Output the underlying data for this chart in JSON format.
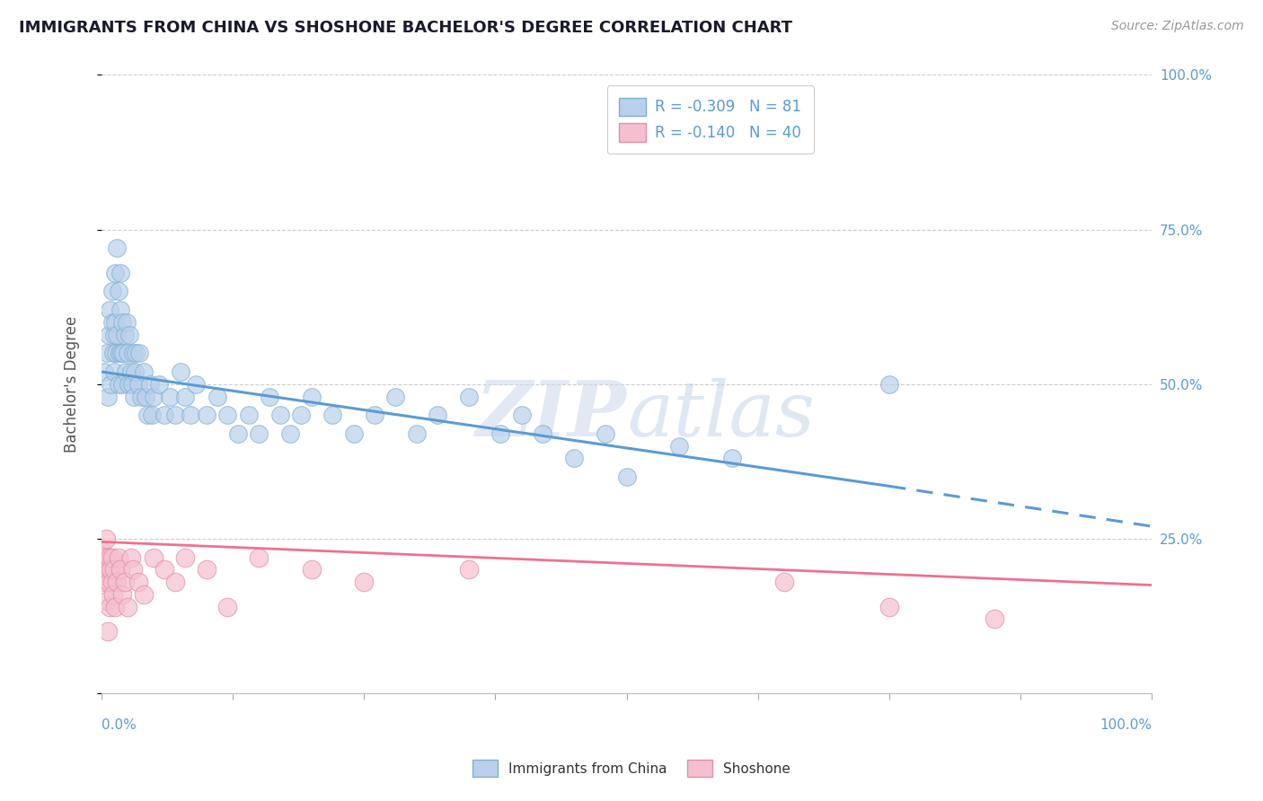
{
  "title": "IMMIGRANTS FROM CHINA VS SHOSHONE BACHELOR'S DEGREE CORRELATION CHART",
  "source": "Source: ZipAtlas.com",
  "watermark": "ZIPatlas",
  "ylabel": "Bachelor's Degree",
  "legend_bottom_labels": [
    "Immigrants from China",
    "Shoshone"
  ],
  "r_china": -0.309,
  "n_china": 81,
  "r_shoshone": -0.14,
  "n_shoshone": 40,
  "china_color": "#b8d0eb",
  "shoshone_color": "#f5bfcf",
  "china_line_color": "#5b9bd5",
  "shoshone_line_color": "#f07090",
  "china_edge_color": "#80afd0",
  "shoshone_edge_color": "#e090a8",
  "background_color": "#ffffff",
  "xlim": [
    0.0,
    1.0
  ],
  "ylim": [
    0.0,
    1.0
  ],
  "yticks": [
    0.0,
    0.25,
    0.5,
    0.75,
    1.0
  ],
  "ytick_labels": [
    "",
    "25.0%",
    "50.0%",
    "75.0%",
    "100.0%"
  ],
  "china_x": [
    0.003,
    0.005,
    0.006,
    0.007,
    0.008,
    0.009,
    0.01,
    0.01,
    0.011,
    0.012,
    0.012,
    0.013,
    0.013,
    0.014,
    0.015,
    0.015,
    0.016,
    0.016,
    0.017,
    0.018,
    0.018,
    0.019,
    0.02,
    0.02,
    0.021,
    0.022,
    0.023,
    0.024,
    0.025,
    0.026,
    0.027,
    0.028,
    0.029,
    0.03,
    0.031,
    0.032,
    0.033,
    0.035,
    0.036,
    0.038,
    0.04,
    0.042,
    0.044,
    0.046,
    0.048,
    0.05,
    0.055,
    0.06,
    0.065,
    0.07,
    0.075,
    0.08,
    0.085,
    0.09,
    0.1,
    0.11,
    0.12,
    0.13,
    0.14,
    0.15,
    0.16,
    0.17,
    0.18,
    0.19,
    0.2,
    0.22,
    0.24,
    0.26,
    0.28,
    0.3,
    0.32,
    0.35,
    0.38,
    0.4,
    0.42,
    0.45,
    0.48,
    0.5,
    0.55,
    0.6,
    0.75
  ],
  "china_y": [
    0.52,
    0.55,
    0.48,
    0.58,
    0.62,
    0.5,
    0.6,
    0.65,
    0.55,
    0.58,
    0.52,
    0.6,
    0.68,
    0.55,
    0.72,
    0.58,
    0.65,
    0.5,
    0.55,
    0.62,
    0.68,
    0.55,
    0.5,
    0.6,
    0.55,
    0.58,
    0.52,
    0.6,
    0.55,
    0.5,
    0.58,
    0.52,
    0.5,
    0.55,
    0.48,
    0.52,
    0.55,
    0.5,
    0.55,
    0.48,
    0.52,
    0.48,
    0.45,
    0.5,
    0.45,
    0.48,
    0.5,
    0.45,
    0.48,
    0.45,
    0.52,
    0.48,
    0.45,
    0.5,
    0.45,
    0.48,
    0.45,
    0.42,
    0.45,
    0.42,
    0.48,
    0.45,
    0.42,
    0.45,
    0.48,
    0.45,
    0.42,
    0.45,
    0.48,
    0.42,
    0.45,
    0.48,
    0.42,
    0.45,
    0.42,
    0.38,
    0.42,
    0.35,
    0.4,
    0.38,
    0.5
  ],
  "shoshone_x": [
    0.001,
    0.002,
    0.003,
    0.004,
    0.004,
    0.005,
    0.006,
    0.006,
    0.007,
    0.008,
    0.008,
    0.009,
    0.01,
    0.01,
    0.011,
    0.012,
    0.013,
    0.015,
    0.016,
    0.018,
    0.02,
    0.022,
    0.025,
    0.028,
    0.03,
    0.035,
    0.04,
    0.05,
    0.06,
    0.07,
    0.08,
    0.1,
    0.12,
    0.15,
    0.2,
    0.25,
    0.35,
    0.65,
    0.75,
    0.85
  ],
  "shoshone_y": [
    0.23,
    0.2,
    0.18,
    0.25,
    0.22,
    0.15,
    0.2,
    0.1,
    0.18,
    0.22,
    0.14,
    0.2,
    0.18,
    0.22,
    0.16,
    0.2,
    0.14,
    0.18,
    0.22,
    0.2,
    0.16,
    0.18,
    0.14,
    0.22,
    0.2,
    0.18,
    0.16,
    0.22,
    0.2,
    0.18,
    0.22,
    0.2,
    0.14,
    0.22,
    0.2,
    0.18,
    0.2,
    0.18,
    0.14,
    0.12
  ],
  "china_line_y0": 0.52,
  "china_line_y_solid_end": 0.335,
  "china_line_solid_end_x": 0.75,
  "china_line_y_dash_end": 0.27,
  "shoshone_line_y0": 0.245,
  "shoshone_line_y1": 0.175
}
